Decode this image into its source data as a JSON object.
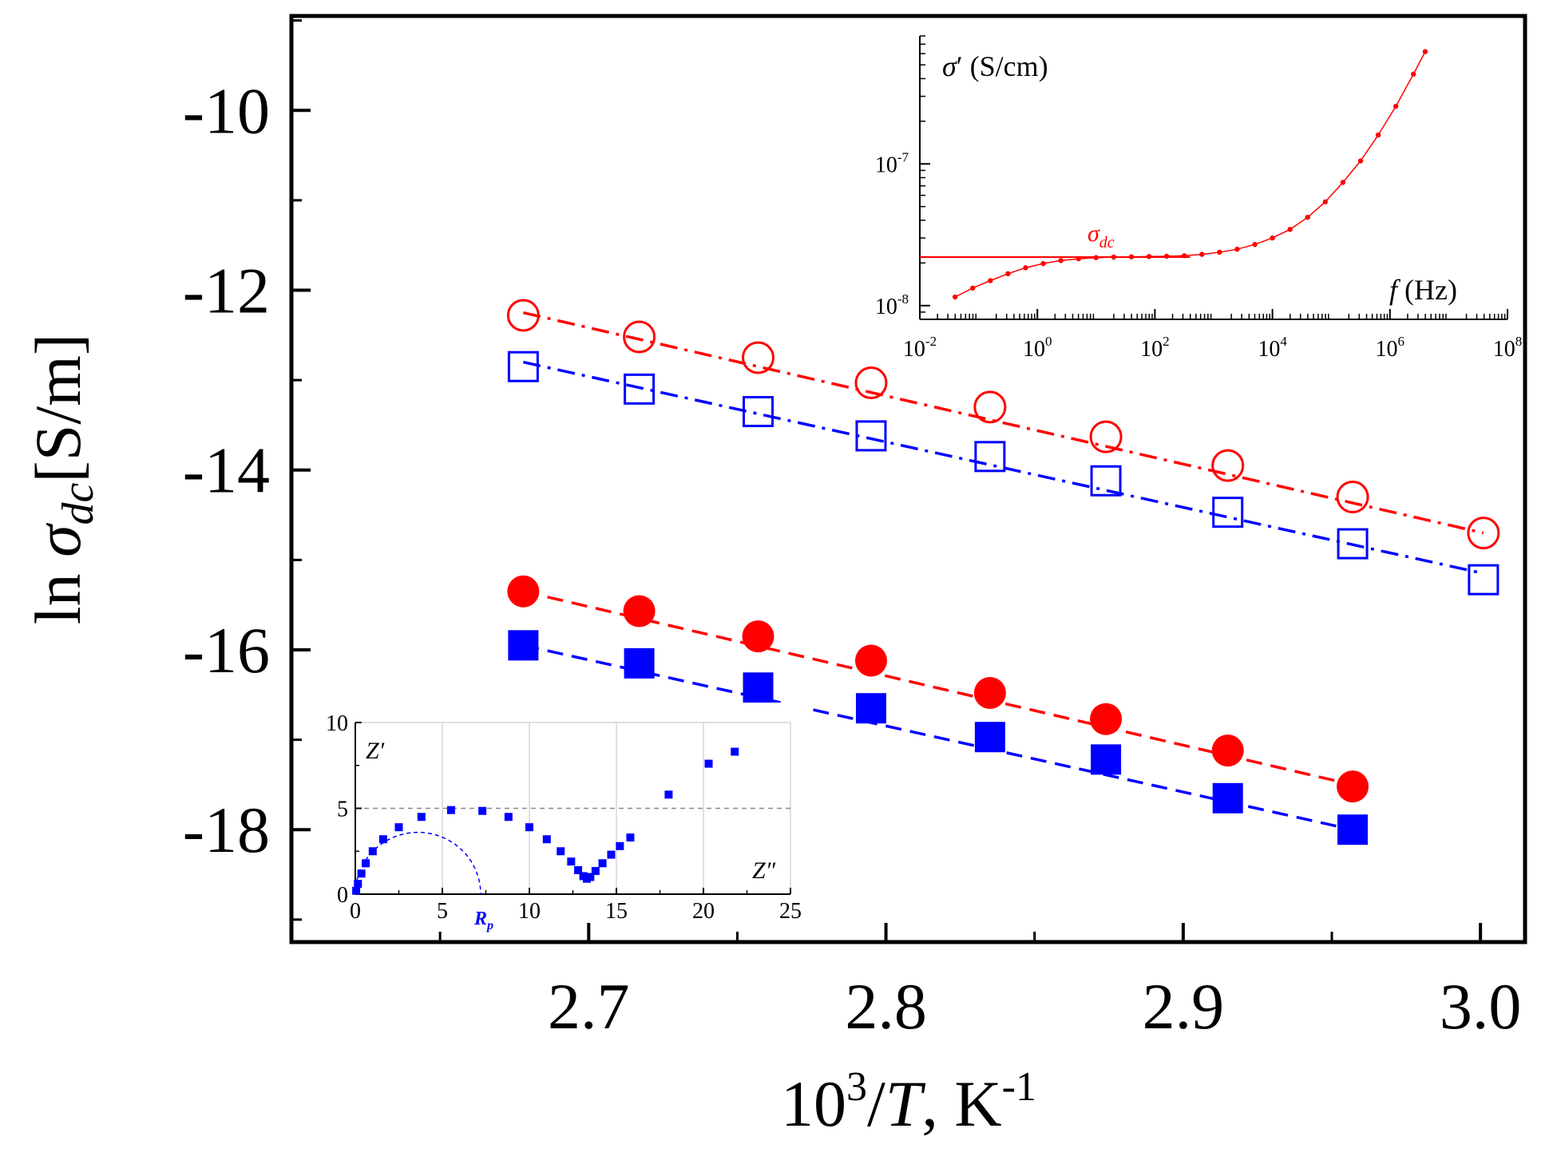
{
  "chart_data": [
    {
      "id": "main",
      "type": "scatter",
      "xlabel": "10³/T, K⁻¹",
      "ylabel": "ln σdc [S/m]",
      "xlim": [
        2.6,
        3.015
      ],
      "ylim": [
        -19.25,
        -8.95
      ],
      "xticks": [
        2.7,
        2.8,
        2.9,
        3.0
      ],
      "xtick_labels": [
        "2.7",
        "2.8",
        "2.9",
        "3.0"
      ],
      "yticks": [
        -10,
        -12,
        -14,
        -16,
        -18
      ],
      "ytick_labels": [
        "-10",
        "-12",
        "-14",
        "-16",
        "-18"
      ],
      "grid": false,
      "series": [
        {
          "name": "open circles",
          "marker": "open-circle",
          "color": "#ff0000",
          "fit_style": "dash-dot",
          "x": [
            2.678,
            2.717,
            2.757,
            2.795,
            2.835,
            2.874,
            2.915,
            2.957,
            3.001
          ],
          "y": [
            -12.28,
            -12.52,
            -12.75,
            -13.03,
            -13.3,
            -13.63,
            -13.95,
            -14.3,
            -14.7
          ],
          "fit": [
            [
              2.678,
              -12.25
            ],
            [
              3.001,
              -14.7
            ]
          ]
        },
        {
          "name": "open squares",
          "marker": "open-square",
          "color": "#0000ff",
          "fit_style": "dash-dot",
          "x": [
            2.678,
            2.717,
            2.757,
            2.795,
            2.835,
            2.874,
            2.915,
            2.957,
            3.001
          ],
          "y": [
            -12.85,
            -13.1,
            -13.35,
            -13.62,
            -13.85,
            -14.12,
            -14.47,
            -14.82,
            -15.22
          ],
          "fit": [
            [
              2.678,
              -12.8
            ],
            [
              3.001,
              -15.15
            ]
          ]
        },
        {
          "name": "filled circles",
          "marker": "filled-circle",
          "color": "#ff0000",
          "fit_style": "dashed",
          "x": [
            2.678,
            2.717,
            2.757,
            2.795,
            2.835,
            2.874,
            2.915,
            2.957
          ],
          "y": [
            -15.35,
            -15.57,
            -15.85,
            -16.12,
            -16.48,
            -16.77,
            -17.12,
            -17.52
          ],
          "fit": [
            [
              2.678,
              -15.35
            ],
            [
              2.957,
              -17.5
            ]
          ]
        },
        {
          "name": "filled squares",
          "marker": "filled-square",
          "color": "#0000ff",
          "fit_style": "dashed",
          "x": [
            2.678,
            2.717,
            2.757,
            2.795,
            2.835,
            2.874,
            2.915,
            2.957
          ],
          "y": [
            -15.95,
            -16.15,
            -16.42,
            -16.65,
            -16.97,
            -17.22,
            -17.65,
            -18.0
          ],
          "fit": [
            [
              2.678,
              -15.95
            ],
            [
              2.957,
              -18.0
            ]
          ]
        }
      ]
    },
    {
      "id": "inset_top",
      "type": "line",
      "title": "σ′ (S/cm)",
      "xlabel": "f (Hz)",
      "x_scale": "log",
      "y_scale": "log",
      "xlim": [
        0.01,
        100000000
      ],
      "ylim": [
        8e-09,
        8e-07
      ],
      "xticks": [
        0.01,
        1,
        100,
        10000,
        1000000,
        100000000
      ],
      "xtick_labels": [
        {
          "base": "10",
          "exp": "-2"
        },
        {
          "base": "10",
          "exp": "0"
        },
        {
          "base": "10",
          "exp": "2"
        },
        {
          "base": "10",
          "exp": "4"
        },
        {
          "base": "10",
          "exp": "6"
        },
        {
          "base": "10",
          "exp": "8"
        }
      ],
      "yticks": [
        1e-08,
        1e-07
      ],
      "ytick_labels": [
        {
          "base": "10",
          "exp": "-8"
        },
        {
          "base": "10",
          "exp": "-7"
        }
      ],
      "annotation": {
        "base": "σ",
        "sub": "dc"
      },
      "sigma_dc": 2.2e-08,
      "color": "#ff0000",
      "series": [
        {
          "name": "σ′(f)",
          "log10_f": [
            -1.4,
            -1.1,
            -0.8,
            -0.5,
            -0.2,
            0.1,
            0.4,
            0.7,
            1.0,
            1.3,
            1.6,
            1.9,
            2.2,
            2.5,
            2.8,
            3.1,
            3.4,
            3.7,
            4.0,
            4.3,
            4.6,
            4.9,
            5.2,
            5.5,
            5.8,
            6.1,
            6.4,
            6.6
          ],
          "sigma": [
            1.15e-08,
            1.33e-08,
            1.5e-08,
            1.68e-08,
            1.85e-08,
            1.98e-08,
            2.08e-08,
            2.14e-08,
            2.18e-08,
            2.2e-08,
            2.21e-08,
            2.22e-08,
            2.23e-08,
            2.25e-08,
            2.3e-08,
            2.38e-08,
            2.5e-08,
            2.7e-08,
            3e-08,
            3.45e-08,
            4.2e-08,
            5.4e-08,
            7.4e-08,
            1.05e-07,
            1.6e-07,
            2.55e-07,
            4.3e-07,
            6.2e-07
          ]
        }
      ]
    },
    {
      "id": "inset_bottom",
      "type": "scatter",
      "ylabel": "Z′",
      "xlabel": "Z″",
      "xlim": [
        0,
        25
      ],
      "ylim": [
        0,
        10
      ],
      "xticks": [
        0,
        5,
        10,
        15,
        20,
        25
      ],
      "xtick_labels": [
        "0",
        "5",
        "10",
        "15",
        "20",
        "25"
      ],
      "yticks": [
        0,
        5,
        10
      ],
      "ytick_labels": [
        "0",
        "5",
        "10"
      ],
      "grid": true,
      "reference_line_y": 5,
      "annotation": {
        "base": "R",
        "sub": "p"
      },
      "semicircle": {
        "center_x": 3.6,
        "radius": 3.6
      },
      "color": "#0000ff",
      "series": [
        {
          "name": "impedance",
          "x": [
            0.05,
            0.15,
            0.35,
            0.6,
            1.0,
            1.6,
            2.5,
            3.8,
            5.5,
            7.3,
            8.8,
            10.0,
            11.0,
            11.8,
            12.4,
            12.8,
            13.1,
            13.3,
            13.5,
            13.8,
            14.2,
            14.7,
            15.2,
            15.8,
            18.0,
            20.3,
            21.8
          ],
          "y": [
            0.2,
            0.6,
            1.2,
            1.8,
            2.5,
            3.2,
            3.9,
            4.5,
            4.9,
            4.85,
            4.5,
            3.9,
            3.2,
            2.5,
            1.9,
            1.4,
            1.05,
            0.9,
            1.0,
            1.35,
            1.8,
            2.3,
            2.8,
            3.3,
            5.8,
            7.6,
            8.3
          ]
        }
      ]
    }
  ]
}
